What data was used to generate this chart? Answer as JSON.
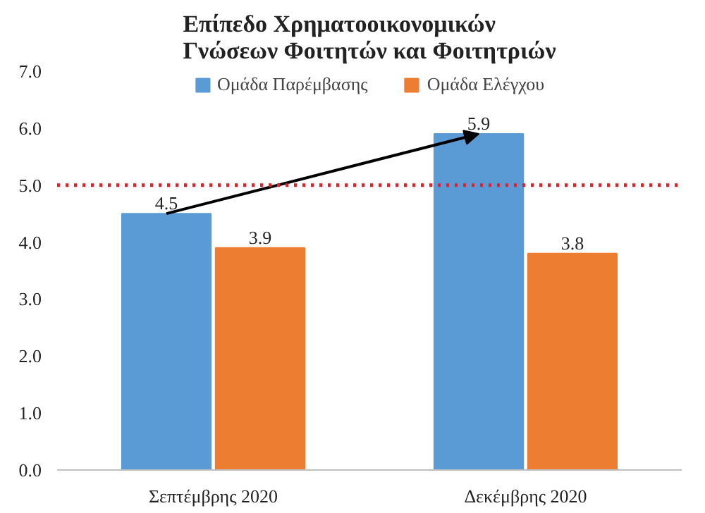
{
  "chart_data": {
    "type": "bar",
    "title": "Επίπεδο Χρηματοοικονομικών Γνώσεων Φοιτητών και Φοιτητριών",
    "categories": [
      "Σεπτέμβρης 2020",
      "Δεκέμβρης 2020"
    ],
    "series": [
      {
        "name": "Ομάδα Παρέμβασης",
        "color": "#5b9bd5",
        "values": [
          4.5,
          5.9
        ]
      },
      {
        "name": "Ομάδα Ελέγχου",
        "color": "#ed7d31",
        "values": [
          3.9,
          3.8
        ]
      }
    ],
    "ylim": [
      0,
      7
    ],
    "yticks": [
      {
        "value": 0,
        "label": "0.0"
      },
      {
        "value": 1,
        "label": "1.0"
      },
      {
        "value": 2,
        "label": "2.0"
      },
      {
        "value": 3,
        "label": "3.0"
      },
      {
        "value": 4,
        "label": "4.0"
      },
      {
        "value": 5,
        "label": "5.0"
      },
      {
        "value": 6,
        "label": "6.0"
      },
      {
        "value": 7,
        "label": "7.0"
      }
    ],
    "ref_lines": [
      {
        "axis": "y",
        "value": 5.0,
        "color": "#e0202a",
        "line_style": "dotted"
      }
    ],
    "data_labels": true,
    "legend": "top",
    "grid": false
  }
}
